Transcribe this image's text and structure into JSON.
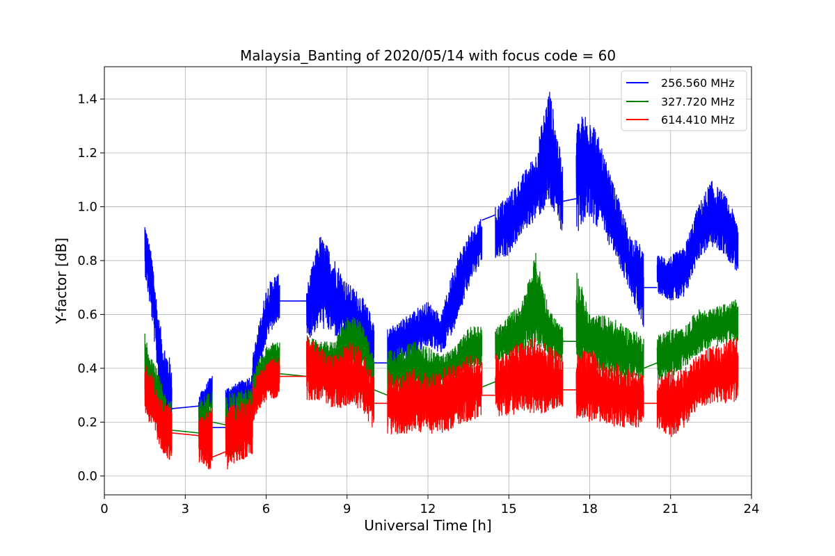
{
  "chart_data": {
    "type": "line",
    "title": "Malaysia_Banting of 2020/05/14 with focus code = 60",
    "xlabel": "Universal Time [h]",
    "ylabel": "Y-factor [dB]",
    "xlim": [
      0,
      24
    ],
    "ylim": [
      -0.07,
      1.52
    ],
    "xticks": [
      0,
      3,
      6,
      9,
      12,
      15,
      18,
      21,
      24
    ],
    "yticks": [
      0.0,
      0.2,
      0.4,
      0.6,
      0.8,
      1.0,
      1.2,
      1.4
    ],
    "grid": true,
    "legend_position": "top-right",
    "series": [
      {
        "name": "256.560 MHz",
        "color": "#0000ff",
        "segments": [
          {
            "x": [
              1.5,
              1.8,
              2.0,
              2.2,
              2.5
            ],
            "low": [
              0.75,
              0.55,
              0.35,
              0.18,
              0.15
            ],
            "high": [
              0.95,
              0.8,
              0.6,
              0.5,
              0.42
            ]
          },
          {
            "x": [
              3.5,
              3.7,
              4.0
            ],
            "low": [
              0.22,
              0.24,
              0.25
            ],
            "high": [
              0.3,
              0.33,
              0.38
            ]
          },
          {
            "x": [
              4.5,
              5.0,
              5.5
            ],
            "low": [
              0.22,
              0.24,
              0.26
            ],
            "high": [
              0.33,
              0.35,
              0.38
            ]
          },
          {
            "x": [
              5.5,
              5.8,
              6.0,
              6.3,
              6.5
            ],
            "low": [
              0.28,
              0.4,
              0.5,
              0.55,
              0.58
            ],
            "high": [
              0.45,
              0.6,
              0.7,
              0.75,
              0.75
            ]
          },
          {
            "x": [
              7.5,
              8.0,
              8.5,
              9.0,
              9.5,
              10.0
            ],
            "low": [
              0.5,
              0.55,
              0.52,
              0.48,
              0.45,
              0.4
            ],
            "high": [
              0.7,
              0.9,
              0.82,
              0.72,
              0.68,
              0.58
            ]
          },
          {
            "x": [
              10.5,
              11.0,
              11.5,
              12.0,
              12.5,
              13.0,
              13.5,
              14.0
            ],
            "low": [
              0.38,
              0.42,
              0.45,
              0.48,
              0.45,
              0.55,
              0.7,
              0.8
            ],
            "high": [
              0.55,
              0.58,
              0.62,
              0.65,
              0.6,
              0.8,
              0.9,
              0.97
            ]
          },
          {
            "x": [
              14.5,
              15.0,
              15.5,
              16.0,
              16.5,
              17.0
            ],
            "low": [
              0.8,
              0.82,
              0.9,
              0.95,
              1.0,
              0.9
            ],
            "high": [
              1.0,
              1.05,
              1.12,
              1.2,
              1.45,
              1.15
            ]
          },
          {
            "x": [
              17.5,
              18.0,
              18.5,
              19.0,
              19.5,
              20.0
            ],
            "low": [
              0.9,
              0.95,
              0.9,
              0.8,
              0.68,
              0.55
            ],
            "high": [
              1.32,
              1.37,
              1.2,
              1.05,
              0.9,
              0.85
            ]
          },
          {
            "x": [
              20.5,
              21.0,
              21.5,
              22.0,
              22.5,
              23.0,
              23.5
            ],
            "low": [
              0.68,
              0.65,
              0.65,
              0.8,
              0.85,
              0.82,
              0.75
            ],
            "high": [
              0.82,
              0.82,
              0.85,
              1.0,
              1.1,
              1.05,
              0.95
            ]
          }
        ],
        "gaps": [
          [
            2.5,
            0.25,
            3.5,
            0.26
          ],
          [
            4.0,
            0.18,
            4.5,
            0.18
          ],
          [
            6.5,
            0.65,
            7.5,
            0.65
          ],
          [
            10.0,
            0.42,
            10.5,
            0.42
          ],
          [
            14.0,
            0.95,
            14.5,
            0.97
          ],
          [
            17.0,
            1.02,
            17.5,
            1.03
          ],
          [
            20.0,
            0.7,
            20.5,
            0.7
          ]
        ]
      },
      {
        "name": "327.720 MHz",
        "color": "#008000",
        "segments": [
          {
            "x": [
              1.5,
              1.8,
              2.0,
              2.2,
              2.5
            ],
            "low": [
              0.25,
              0.22,
              0.18,
              0.1,
              0.05
            ],
            "high": [
              0.54,
              0.45,
              0.38,
              0.32,
              0.28
            ]
          },
          {
            "x": [
              3.5,
              3.7,
              4.0
            ],
            "low": [
              0.1,
              0.12,
              0.1
            ],
            "high": [
              0.28,
              0.3,
              0.32
            ]
          },
          {
            "x": [
              4.5,
              5.0,
              5.5
            ],
            "low": [
              0.05,
              0.08,
              0.1
            ],
            "high": [
              0.3,
              0.32,
              0.33
            ]
          },
          {
            "x": [
              5.5,
              5.8,
              6.0,
              6.3,
              6.5
            ],
            "low": [
              0.28,
              0.32,
              0.35,
              0.38,
              0.38
            ],
            "high": [
              0.38,
              0.45,
              0.48,
              0.5,
              0.5
            ]
          },
          {
            "x": [
              7.5,
              8.0,
              8.5,
              9.0,
              9.5,
              10.0
            ],
            "low": [
              0.38,
              0.37,
              0.35,
              0.38,
              0.4,
              0.32
            ],
            "high": [
              0.52,
              0.5,
              0.5,
              0.6,
              0.58,
              0.45
            ]
          },
          {
            "x": [
              10.5,
              11.0,
              11.5,
              12.0,
              12.5,
              13.0,
              13.5,
              14.0
            ],
            "low": [
              0.3,
              0.3,
              0.3,
              0.3,
              0.32,
              0.35,
              0.38,
              0.4
            ],
            "high": [
              0.48,
              0.48,
              0.5,
              0.48,
              0.45,
              0.48,
              0.55,
              0.57
            ]
          },
          {
            "x": [
              14.5,
              15.0,
              15.5,
              16.0,
              16.5,
              17.0
            ],
            "low": [
              0.42,
              0.42,
              0.45,
              0.48,
              0.45,
              0.4
            ],
            "high": [
              0.55,
              0.6,
              0.65,
              0.83,
              0.62,
              0.55
            ]
          },
          {
            "x": [
              17.5,
              18.0,
              18.5,
              19.0,
              19.5,
              20.0
            ],
            "low": [
              0.4,
              0.42,
              0.38,
              0.35,
              0.35,
              0.35
            ],
            "high": [
              0.78,
              0.6,
              0.6,
              0.58,
              0.55,
              0.52
            ]
          },
          {
            "x": [
              20.5,
              21.0,
              21.5,
              22.0,
              22.5,
              23.0,
              23.5
            ],
            "low": [
              0.35,
              0.36,
              0.4,
              0.45,
              0.48,
              0.48,
              0.5
            ],
            "high": [
              0.52,
              0.55,
              0.55,
              0.62,
              0.62,
              0.64,
              0.66
            ]
          }
        ],
        "gaps": [
          [
            2.5,
            0.17,
            3.5,
            0.16
          ],
          [
            4.0,
            0.2,
            4.5,
            0.19
          ],
          [
            6.5,
            0.38,
            7.5,
            0.37
          ],
          [
            10.0,
            0.32,
            10.5,
            0.3
          ],
          [
            14.0,
            0.33,
            14.5,
            0.35
          ],
          [
            17.0,
            0.5,
            17.5,
            0.5
          ],
          [
            20.0,
            0.4,
            20.5,
            0.42
          ]
        ]
      },
      {
        "name": "614.410 MHz",
        "color": "#ff0000",
        "segments": [
          {
            "x": [
              1.5,
              1.8,
              2.0,
              2.2,
              2.5
            ],
            "low": [
              0.22,
              0.18,
              0.12,
              0.08,
              0.05
            ],
            "high": [
              0.42,
              0.38,
              0.3,
              0.28,
              0.26
            ]
          },
          {
            "x": [
              3.5,
              3.7,
              4.0
            ],
            "low": [
              0.05,
              0.04,
              0.01
            ],
            "high": [
              0.22,
              0.24,
              0.26
            ]
          },
          {
            "x": [
              4.5,
              5.0,
              5.5
            ],
            "low": [
              0.02,
              0.05,
              0.08
            ],
            "high": [
              0.25,
              0.28,
              0.3
            ]
          },
          {
            "x": [
              5.5,
              5.8,
              6.0,
              6.3,
              6.5
            ],
            "low": [
              0.2,
              0.25,
              0.28,
              0.28,
              0.3
            ],
            "high": [
              0.35,
              0.4,
              0.42,
              0.44,
              0.44
            ]
          },
          {
            "x": [
              7.5,
              8.0,
              8.5,
              9.0,
              9.5,
              10.0
            ],
            "low": [
              0.28,
              0.28,
              0.25,
              0.25,
              0.25,
              0.16
            ],
            "high": [
              0.54,
              0.48,
              0.45,
              0.5,
              0.48,
              0.4
            ]
          },
          {
            "x": [
              10.5,
              11.0,
              11.5,
              12.0,
              12.5,
              13.0,
              13.5,
              14.0
            ],
            "low": [
              0.15,
              0.15,
              0.16,
              0.16,
              0.15,
              0.18,
              0.2,
              0.22
            ],
            "high": [
              0.4,
              0.38,
              0.4,
              0.38,
              0.4,
              0.42,
              0.45,
              0.45
            ]
          },
          {
            "x": [
              14.5,
              15.0,
              15.5,
              16.0,
              16.5,
              17.0
            ],
            "low": [
              0.22,
              0.22,
              0.24,
              0.22,
              0.24,
              0.24
            ],
            "high": [
              0.45,
              0.48,
              0.5,
              0.52,
              0.48,
              0.45
            ]
          },
          {
            "x": [
              17.5,
              18.0,
              18.5,
              19.0,
              19.5,
              20.0
            ],
            "low": [
              0.2,
              0.2,
              0.2,
              0.18,
              0.18,
              0.18
            ],
            "high": [
              0.45,
              0.48,
              0.42,
              0.42,
              0.4,
              0.38
            ]
          },
          {
            "x": [
              20.5,
              21.0,
              21.5,
              22.0,
              22.5,
              23.0,
              23.5
            ],
            "low": [
              0.18,
              0.14,
              0.18,
              0.25,
              0.27,
              0.27,
              0.27
            ],
            "high": [
              0.38,
              0.4,
              0.4,
              0.45,
              0.48,
              0.5,
              0.52
            ]
          }
        ],
        "gaps": [
          [
            2.5,
            0.16,
            3.5,
            0.15
          ],
          [
            4.0,
            0.07,
            4.5,
            0.09
          ],
          [
            6.5,
            0.37,
            7.5,
            0.37
          ],
          [
            10.0,
            0.27,
            10.5,
            0.27
          ],
          [
            14.0,
            0.3,
            14.5,
            0.3
          ],
          [
            17.0,
            0.32,
            17.5,
            0.32
          ],
          [
            20.0,
            0.27,
            20.5,
            0.27
          ]
        ]
      }
    ]
  }
}
